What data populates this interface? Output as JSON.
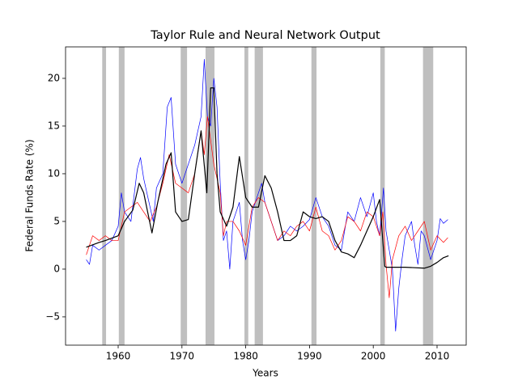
{
  "chart_data": {
    "type": "line",
    "title": "Taylor Rule and Neural Network Output",
    "x_label": "Years",
    "y_label": "Federal Funds Rate (%)",
    "xlim": [
      1951.75,
      2014.57
    ],
    "ylim": [
      -7.97,
      23.3
    ],
    "xticks": [
      1960,
      1970,
      1980,
      1990,
      2000,
      2010
    ],
    "yticks": [
      {
        "value": -5,
        "label": "−5"
      },
      0,
      5,
      10,
      15,
      20
    ],
    "grid": false,
    "shaded_regions": [
      [
        1957.5,
        1958.1
      ],
      [
        1960.1,
        1961.0
      ],
      [
        1969.8,
        1970.8
      ],
      [
        1973.7,
        1975.1
      ],
      [
        1979.8,
        1980.4
      ],
      [
        1981.4,
        1982.7
      ],
      [
        1990.3,
        1991.1
      ],
      [
        2001.1,
        2001.8
      ],
      [
        2007.8,
        2009.4
      ]
    ],
    "shaded_color": "#bfbfbf",
    "series": [
      {
        "color": "#0000ff",
        "x": [
          1955,
          1955.5,
          1956,
          1957,
          1958,
          1959,
          1960,
          1960.5,
          1961,
          1962,
          1963,
          1963.5,
          1964,
          1965,
          1965.5,
          1966,
          1967,
          1967.7,
          1968.3,
          1969,
          1970,
          1971,
          1972,
          1973,
          1973.5,
          1974,
          1974.5,
          1975,
          1975.5,
          1976,
          1976.5,
          1977,
          1977.5,
          1978,
          1979,
          1979.5,
          1980,
          1980.5,
          1981,
          1981.5,
          1982,
          1982.5,
          1983,
          1984,
          1985,
          1986,
          1987,
          1988,
          1989,
          1990,
          1991,
          1992,
          1993,
          1994,
          1995,
          1996,
          1997,
          1998,
          1999,
          2000,
          2000.5,
          2001,
          2001.6,
          2002,
          2003,
          2003.5,
          2004,
          2004.5,
          2005,
          2006,
          2006.5,
          2007,
          2007.5,
          2008,
          2009,
          2010,
          2010.5,
          2011,
          2011.7
        ],
        "values": [
          1.0,
          0.5,
          2.5,
          2.0,
          2.5,
          3.0,
          4.5,
          8.0,
          6.0,
          5.0,
          10.5,
          11.7,
          9.5,
          6.5,
          5.0,
          8.5,
          10,
          17,
          18,
          11,
          9,
          11,
          13,
          16,
          22,
          16,
          15,
          20,
          17,
          9,
          3.0,
          4,
          0,
          5,
          7,
          3,
          1.0,
          3,
          6,
          7,
          8,
          9,
          7,
          5,
          3.0,
          3.5,
          4.5,
          4,
          4.5,
          5.2,
          7.5,
          5.5,
          4.5,
          2.5,
          2.0,
          6,
          5,
          7.5,
          5.5,
          8,
          5,
          3.5,
          8.5,
          4,
          0,
          -6.5,
          -2,
          1,
          3.5,
          5.0,
          2.5,
          0.5,
          4,
          3.5,
          1.0,
          3.0,
          5.3,
          4.8,
          5.2
        ]
      },
      {
        "color": "#ff0000",
        "x": [
          1955,
          1956,
          1957,
          1958,
          1959,
          1960,
          1961,
          1962,
          1963,
          1964,
          1965,
          1966,
          1967,
          1968,
          1969,
          1970,
          1971,
          1972,
          1973,
          1973.5,
          1974,
          1975,
          1976,
          1976.5,
          1977,
          1978,
          1979,
          1980,
          1981,
          1982,
          1983,
          1984,
          1985,
          1986,
          1987,
          1988,
          1989,
          1990,
          1991,
          1992,
          1993,
          1994,
          1995,
          1996,
          1997,
          1998,
          1999,
          2000,
          2001,
          2001.5,
          2002,
          2002.5,
          2003,
          2004,
          2005,
          2006,
          2007,
          2008,
          2009,
          2010,
          2011,
          2011.7
        ],
        "values": [
          1.5,
          3.5,
          3.0,
          3.5,
          3.0,
          3.0,
          6.0,
          6.5,
          7.0,
          6.0,
          5.0,
          6.5,
          9.0,
          12.0,
          9.0,
          8.5,
          8.0,
          10.0,
          14.5,
          12,
          16,
          11,
          8,
          3.5,
          5.0,
          5.0,
          4.0,
          2.5,
          6.5,
          7.5,
          7.0,
          5.0,
          3.0,
          4.0,
          3.5,
          4.5,
          5.0,
          4.0,
          6.5,
          4.0,
          3.5,
          2.0,
          3.0,
          5.5,
          5.0,
          4.0,
          6.0,
          5.5,
          3.5,
          6,
          0.5,
          -3,
          1.0,
          3.5,
          4.5,
          3.0,
          4.0,
          5.0,
          2.0,
          3.5,
          2.8,
          3.3
        ]
      },
      {
        "color": "#000000",
        "x": [
          1955,
          1957,
          1958,
          1960,
          1961,
          1962.3,
          1963.3,
          1964,
          1965.3,
          1966.2,
          1967.5,
          1968.3,
          1969,
          1970,
          1971,
          1972,
          1973,
          1973.9,
          1974.5,
          1975,
          1975.5,
          1976,
          1977,
          1978,
          1979,
          1980,
          1981,
          1982,
          1983,
          1984,
          1985,
          1986,
          1987,
          1988,
          1989,
          1990,
          1991,
          1992,
          1993,
          1994,
          1995,
          1996,
          1997,
          1998,
          1999,
          2000,
          2001,
          2001.8,
          2002,
          2005,
          2008,
          2009,
          2010,
          2011,
          2011.8
        ],
        "values": [
          2.3,
          2.8,
          3.0,
          3.5,
          5.0,
          6.2,
          9.0,
          8.0,
          3.8,
          7.0,
          11,
          12.2,
          6.0,
          5.0,
          5.2,
          10,
          14.5,
          8,
          19,
          19,
          10,
          6.0,
          4.5,
          6.5,
          11.8,
          7.5,
          6.5,
          6.5,
          9.8,
          8.5,
          6.0,
          3.0,
          3.0,
          3.5,
          6.0,
          5.5,
          5.3,
          5.5,
          5.0,
          3.0,
          1.8,
          1.6,
          1.2,
          2.5,
          4.0,
          5.5,
          7.3,
          0.3,
          0.2,
          0.2,
          0.1,
          0.3,
          0.7,
          1.2,
          1.4
        ]
      }
    ]
  }
}
